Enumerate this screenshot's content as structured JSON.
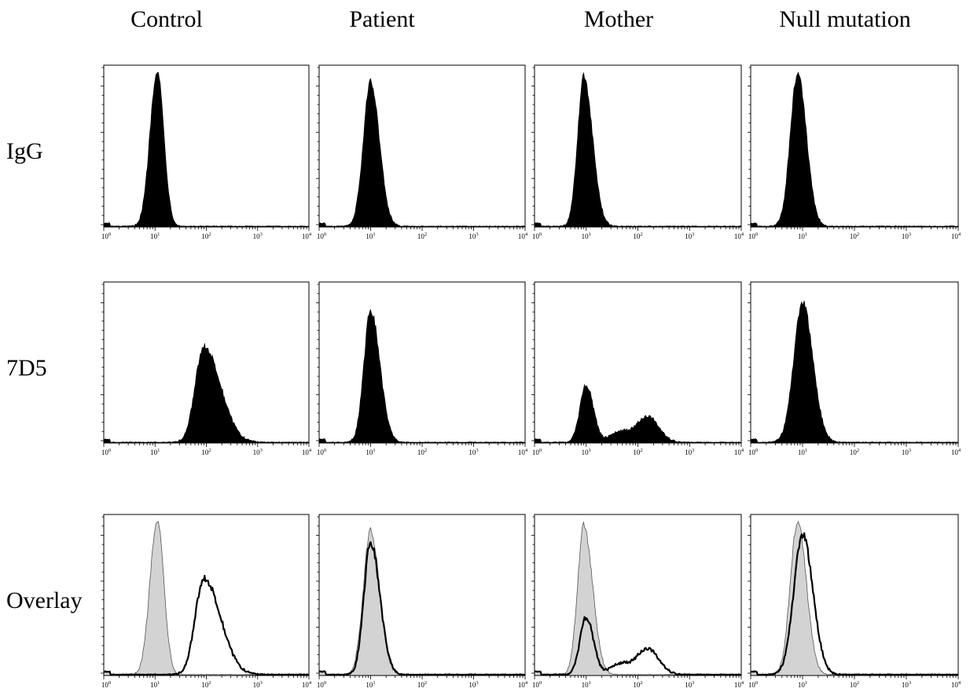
{
  "figure": {
    "columns": [
      "Control",
      "Patient",
      "Mother",
      "Null mutation"
    ],
    "rows": [
      "IgG",
      "7D5",
      "Overlay"
    ]
  },
  "chart_data": {
    "type": "area",
    "x_scale": "log10",
    "xlim": [
      1,
      10000
    ],
    "x_ticks": [
      {
        "base": "10",
        "exp": "0"
      },
      {
        "base": "10",
        "exp": "1"
      },
      {
        "base": "10",
        "exp": "2"
      },
      {
        "base": "10",
        "exp": "3"
      },
      {
        "base": "10",
        "exp": "4"
      }
    ],
    "y_ticks": "unlabeled",
    "grid": false,
    "overlay_style": {
      "IgG": "gray filled",
      "7D5": "black outline"
    },
    "populations": {
      "Control": {
        "IgG": [
          {
            "center": 11,
            "height": 1.0,
            "width_l": 0.14,
            "width_r": 0.13
          }
        ],
        "7D5": [
          {
            "center": 90,
            "height": 0.62,
            "width_l": 0.17,
            "width_r": 0.32
          }
        ]
      },
      "Patient": {
        "IgG": [
          {
            "center": 10,
            "height": 0.93,
            "width_l": 0.14,
            "width_r": 0.17
          }
        ],
        "7D5": [
          {
            "center": 10,
            "height": 0.85,
            "width_l": 0.13,
            "width_r": 0.18
          }
        ]
      },
      "Mother": {
        "IgG": [
          {
            "center": 9,
            "height": 0.96,
            "width_l": 0.12,
            "width_r": 0.17
          }
        ],
        "7D5": [
          {
            "center": 10,
            "height": 0.37,
            "width_l": 0.12,
            "width_r": 0.14
          },
          {
            "center": 45,
            "height": 0.07,
            "width_l": 0.18,
            "width_r": 0.18
          },
          {
            "center": 150,
            "height": 0.17,
            "width_l": 0.2,
            "width_r": 0.22
          }
        ]
      },
      "Null mutation": {
        "IgG": [
          {
            "center": 8,
            "height": 0.98,
            "width_l": 0.14,
            "width_r": 0.17
          }
        ],
        "7D5": [
          {
            "center": 10,
            "height": 0.9,
            "width_l": 0.17,
            "width_r": 0.2
          }
        ]
      }
    }
  }
}
